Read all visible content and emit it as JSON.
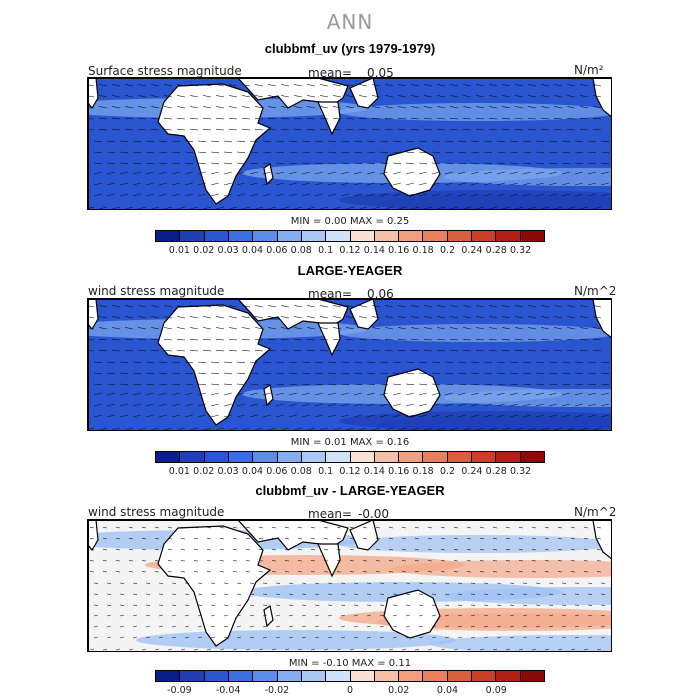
{
  "figure": {
    "title": "ANN"
  },
  "panels": [
    {
      "title": "clubbmf_uv (yrs 1979-1979)",
      "left_label": "Surface stress magnitude",
      "mean_label": "mean=",
      "mean_value": "0.05",
      "units": "N/m²",
      "minmax": "MIN =   0.00  MAX =   0.25",
      "colorbar": {
        "colors": [
          "#0a1f8c",
          "#1f3fb3",
          "#2a55d1",
          "#3b6ee0",
          "#5a8ee8",
          "#84aef0",
          "#aac9f5",
          "#d0e2fa",
          "#fbe0d4",
          "#f6c0a8",
          "#f0a080",
          "#e8805d",
          "#d9603d",
          "#c9402a",
          "#b02018",
          "#8a0a0a"
        ],
        "ticks": [
          "0.01",
          "0.02",
          "0.03",
          "0.04",
          "0.06",
          "0.08",
          "0.1",
          "0.12",
          "0.14",
          "0.16",
          "0.18",
          "0.2",
          "0.24",
          "0.28",
          "0.32"
        ]
      }
    },
    {
      "title": "LARGE-YEAGER",
      "left_label": "wind stress magnitude",
      "mean_label": "mean=",
      "mean_value": "0.06",
      "units": "N/m^2",
      "minmax": "MIN =   0.01  MAX =   0.16",
      "colorbar": {
        "colors": [
          "#0a1f8c",
          "#1f3fb3",
          "#2a55d1",
          "#3b6ee0",
          "#5a8ee8",
          "#84aef0",
          "#aac9f5",
          "#d0e2fa",
          "#fbe0d4",
          "#f6c0a8",
          "#f0a080",
          "#e8805d",
          "#d9603d",
          "#c9402a",
          "#b02018",
          "#8a0a0a"
        ],
        "ticks": [
          "0.01",
          "0.02",
          "0.03",
          "0.04",
          "0.06",
          "0.08",
          "0.1",
          "0.12",
          "0.14",
          "0.16",
          "0.18",
          "0.2",
          "0.24",
          "0.28",
          "0.32"
        ]
      }
    },
    {
      "title": "clubbmf_uv - LARGE-YEAGER",
      "left_label": "wind stress magnitude",
      "mean_label": "mean=",
      "mean_value": "-0.00",
      "units": "N/m^2",
      "minmax": "MIN =  -0.10  MAX =   0.11",
      "colorbar": {
        "colors": [
          "#0a1f8c",
          "#1f3fb3",
          "#2a55d1",
          "#3b6ee0",
          "#5a8ee8",
          "#84aef0",
          "#aac9f5",
          "#d0e2fa",
          "#fbe0d4",
          "#f6c0a8",
          "#f0a080",
          "#e8805d",
          "#d9603d",
          "#c9402a",
          "#b02018",
          "#8a0a0a"
        ],
        "ticks": [
          "-0.09",
          "",
          "-0.04",
          "",
          "-0.02",
          "",
          "",
          "0",
          "",
          "0.02",
          "",
          "0.04",
          "",
          "0.09",
          ""
        ]
      }
    }
  ],
  "map_colors": {
    "land": "#ffffff",
    "ocean_strong": "#2a55d1",
    "ocean_light": "#7aa5ec",
    "anomaly_pos": "#f4a88a",
    "anomaly_neg": "#9cc0f3",
    "anomaly_neutral": "#f4f4f4"
  }
}
